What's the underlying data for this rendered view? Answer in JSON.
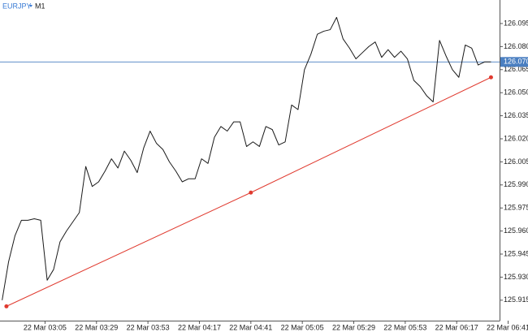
{
  "chart_data": {
    "type": "line",
    "title": "EURJPY",
    "subtitle": "M1",
    "color": "#1a1a1a",
    "x": [
      "02:45",
      "02:48",
      "02:51",
      "02:54",
      "02:57",
      "03:00",
      "03:03",
      "03:06",
      "03:09",
      "03:12",
      "03:15",
      "03:18",
      "03:21",
      "03:24",
      "03:27",
      "03:30",
      "03:33",
      "03:36",
      "03:39",
      "03:42",
      "03:45",
      "03:48",
      "03:51",
      "03:54",
      "03:57",
      "04:00",
      "04:03",
      "04:06",
      "04:09",
      "04:12",
      "04:15",
      "04:18",
      "04:21",
      "04:24",
      "04:27",
      "04:30",
      "04:33",
      "04:36",
      "04:39",
      "04:42",
      "04:45",
      "04:48",
      "04:51",
      "04:54",
      "04:57",
      "05:00",
      "05:03",
      "05:06",
      "05:09",
      "05:12",
      "05:15",
      "05:18",
      "05:21",
      "05:24",
      "05:27",
      "05:30",
      "05:33",
      "05:36",
      "05:39",
      "05:42",
      "05:45",
      "05:48",
      "05:51",
      "05:54",
      "05:57",
      "06:00",
      "06:03",
      "06:06",
      "06:09",
      "06:12",
      "06:15",
      "06:18",
      "06:21",
      "06:24",
      "06:27",
      "06:30",
      "06:33"
    ],
    "values": [
      125.915,
      125.94,
      125.957,
      125.967,
      125.967,
      125.968,
      125.967,
      125.928,
      125.935,
      125.953,
      125.96,
      125.966,
      125.972,
      126.002,
      125.989,
      125.992,
      125.999,
      126.007,
      126.001,
      126.012,
      126.006,
      125.998,
      126.014,
      126.025,
      126.017,
      126.013,
      126.005,
      125.999,
      125.992,
      125.994,
      125.994,
      126.007,
      126.004,
      126.021,
      126.028,
      126.025,
      126.031,
      126.031,
      126.015,
      126.018,
      126.015,
      126.028,
      126.026,
      126.016,
      126.018,
      126.042,
      126.039,
      126.065,
      126.075,
      126.088,
      126.09,
      126.091,
      126.099,
      126.085,
      126.079,
      126.072,
      126.076,
      126.08,
      126.083,
      126.073,
      126.078,
      126.073,
      126.077,
      126.072,
      126.058,
      126.054,
      126.048,
      126.044,
      126.084,
      126.074,
      126.065,
      126.06,
      126.081,
      126.079,
      126.068,
      126.07,
      126.07
    ],
    "xlim": [
      "02:44",
      "06:37"
    ],
    "xticks": [
      {
        "value": "03:05",
        "label": "22 Mar 03:05"
      },
      {
        "value": "03:29",
        "label": "22 Mar 03:29"
      },
      {
        "value": "03:53",
        "label": "22 Mar 03:53"
      },
      {
        "value": "04:17",
        "label": "22 Mar 04:17"
      },
      {
        "value": "04:41",
        "label": "22 Mar 04:41"
      },
      {
        "value": "05:05",
        "label": "22 Mar 05:05"
      },
      {
        "value": "05:29",
        "label": "22 Mar 05:29"
      },
      {
        "value": "05:53",
        "label": "22 Mar 05:53"
      },
      {
        "value": "06:17",
        "label": "22 Mar 06:17"
      },
      {
        "value": "06:41",
        "label": "22 Mar 06:41"
      }
    ],
    "ylim": [
      125.9017,
      126.1103
    ],
    "yticks": [
      125.915,
      {
        "value": 125.93,
        "label": "125.930"
      },
      125.945,
      {
        "value": 125.96,
        "label": "125.960"
      },
      125.975,
      {
        "value": 125.99,
        "label": "125.990"
      },
      126.005,
      {
        "value": 126.02,
        "label": "126.020"
      },
      126.035,
      {
        "value": 126.05,
        "label": "126.050"
      },
      126.065,
      {
        "value": 126.08,
        "label": "126.080"
      },
      126.095
    ],
    "grid": false,
    "current_price": {
      "value": 126.07,
      "label": "126.070",
      "color": "#4a7fc1"
    },
    "trendline": {
      "color": "#e03a2f",
      "x": [
        "02:47",
        "04:41",
        "06:33"
      ],
      "values": [
        125.911,
        125.985,
        126.06
      ]
    }
  }
}
